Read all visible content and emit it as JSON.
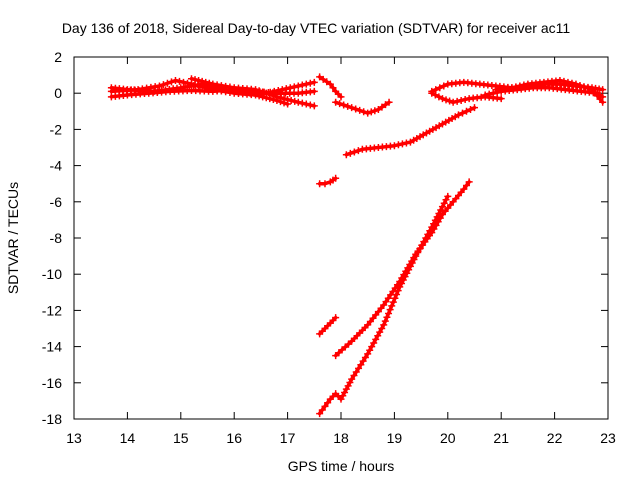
{
  "chart_data": {
    "type": "scatter",
    "title": "Day 136 of 2018, Sidereal Day-to-day VTEC variation (SDTVAR) for receiver ac11",
    "xlabel": "GPS time / hours",
    "ylabel": "SDTVAR / TECUs",
    "xlim": [
      13,
      23
    ],
    "ylim": [
      -18,
      2
    ],
    "xticks": [
      "13",
      "14",
      "15",
      "16",
      "17",
      "18",
      "19",
      "20",
      "21",
      "22",
      "23"
    ],
    "yticks": [
      "-18",
      "-16",
      "-14",
      "-12",
      "-10",
      "-8",
      "-6",
      "-4",
      "-2",
      "0",
      "2"
    ],
    "grid": false,
    "marker": "+",
    "colors": {
      "series": "#ff0000",
      "axes": "#000000",
      "background": "#ffffff"
    },
    "series": [
      {
        "name": "trace-1",
        "x": [
          13.7,
          14.2,
          14.6,
          14.9,
          15.2,
          15.6,
          16.0,
          16.4,
          16.8,
          17.0
        ],
        "y": [
          0.1,
          0.2,
          0.4,
          0.7,
          0.5,
          0.2,
          0.0,
          -0.1,
          -0.4,
          -0.6
        ]
      },
      {
        "name": "trace-2",
        "x": [
          13.7,
          14.0,
          14.4,
          14.8,
          15.2,
          15.6,
          16.0,
          16.4,
          16.8,
          17.2,
          17.5
        ],
        "y": [
          -0.2,
          -0.1,
          0.0,
          0.1,
          0.15,
          0.1,
          0.2,
          0.1,
          0.0,
          0.0,
          0.1
        ]
      },
      {
        "name": "trace-3",
        "x": [
          13.7,
          14.0,
          14.5,
          15.0,
          15.4,
          15.7,
          16.0,
          16.3,
          16.6,
          16.9,
          17.2,
          17.5
        ],
        "y": [
          0.3,
          0.2,
          0.1,
          0.3,
          0.5,
          0.3,
          0.1,
          0.0,
          0.0,
          0.2,
          0.4,
          0.6
        ]
      },
      {
        "name": "trace-4",
        "x": [
          15.2,
          15.6,
          16.0,
          16.4,
          16.8,
          17.2,
          17.5
        ],
        "y": [
          0.8,
          0.5,
          0.3,
          0.2,
          -0.2,
          -0.5,
          -0.7
        ]
      },
      {
        "name": "trace-5",
        "x": [
          17.6,
          17.8,
          17.9,
          18.0
        ],
        "y": [
          0.9,
          0.5,
          0.1,
          -0.2
        ]
      },
      {
        "name": "trace-6",
        "x": [
          17.9,
          18.2,
          18.5,
          18.7,
          18.9
        ],
        "y": [
          -0.5,
          -0.8,
          -1.1,
          -0.9,
          -0.5
        ]
      },
      {
        "name": "trace-7",
        "x": [
          18.1,
          18.4,
          18.7,
          19.0,
          19.3,
          19.6,
          19.9,
          20.2,
          20.5
        ],
        "y": [
          -3.4,
          -3.1,
          -3.0,
          -2.9,
          -2.7,
          -2.2,
          -1.7,
          -1.2,
          -0.8
        ]
      },
      {
        "name": "trace-8",
        "x": [
          17.6,
          17.7,
          17.8,
          17.9
        ],
        "y": [
          -5.0,
          -5.0,
          -4.9,
          -4.7
        ]
      },
      {
        "name": "trace-9",
        "x": [
          17.6,
          17.7,
          17.8,
          17.9
        ],
        "y": [
          -13.3,
          -13.0,
          -12.7,
          -12.4
        ]
      },
      {
        "name": "trace-10",
        "x": [
          17.9,
          18.2,
          18.5,
          18.8,
          19.1,
          19.4,
          19.7,
          19.9,
          20.1,
          20.3,
          20.4
        ],
        "y": [
          -14.5,
          -13.7,
          -12.8,
          -11.7,
          -10.4,
          -8.9,
          -7.7,
          -6.7,
          -6.0,
          -5.3,
          -4.9
        ]
      },
      {
        "name": "trace-11",
        "x": [
          17.6,
          17.8,
          17.9,
          18.0,
          18.2,
          18.5,
          18.8,
          19.1,
          19.4,
          19.7,
          20.0
        ],
        "y": [
          -17.7,
          -16.9,
          -16.6,
          -16.9,
          -15.8,
          -14.4,
          -12.8,
          -10.7,
          -9.0,
          -7.4,
          -5.7
        ]
      },
      {
        "name": "trace-12",
        "x": [
          19.7,
          19.9,
          20.1,
          20.4,
          20.7,
          21.0
        ],
        "y": [
          0.0,
          -0.3,
          -0.5,
          -0.3,
          -0.2,
          -0.3
        ]
      },
      {
        "name": "trace-13",
        "x": [
          19.7,
          20.0,
          20.3,
          20.6,
          20.9,
          21.2,
          21.5,
          21.8,
          22.1,
          22.4,
          22.7,
          22.9
        ],
        "y": [
          0.1,
          0.5,
          0.6,
          0.5,
          0.4,
          0.3,
          0.4,
          0.5,
          0.5,
          0.4,
          0.3,
          0.2
        ]
      },
      {
        "name": "trace-14",
        "x": [
          20.7,
          21.0,
          21.3,
          21.6,
          21.9,
          22.2,
          22.5,
          22.8,
          22.9
        ],
        "y": [
          -0.1,
          0.1,
          0.2,
          0.3,
          0.3,
          0.2,
          0.1,
          0.0,
          -0.2
        ]
      },
      {
        "name": "trace-15",
        "x": [
          20.9,
          21.2,
          21.5,
          21.8,
          22.1,
          22.4,
          22.7,
          22.9
        ],
        "y": [
          0.2,
          0.3,
          0.5,
          0.6,
          0.7,
          0.5,
          0.2,
          -0.5
        ]
      }
    ]
  }
}
